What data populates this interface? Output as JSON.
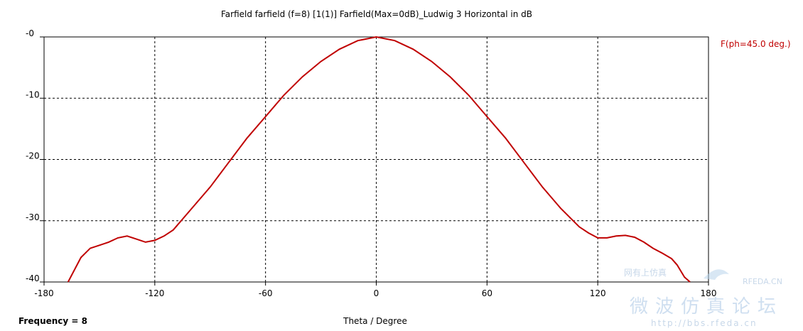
{
  "chart_data": {
    "type": "line",
    "title": "Farfield farfield (f=8) [1(1)] Farfield(Max=0dB)_Ludwig 3 Horizontal in dB",
    "xlabel": "Theta / Degree",
    "ylabel": "",
    "xlim": [
      -180,
      180
    ],
    "ylim": [
      -40,
      0
    ],
    "x_ticks": [
      "-180",
      "-120",
      "-60",
      "0",
      "60",
      "120",
      "180"
    ],
    "y_ticks": [
      "-0",
      "-10",
      "-20",
      "-30",
      "-40"
    ],
    "grid": true,
    "legend_position": "right",
    "series": [
      {
        "name": "F(ph=45.0 deg.)",
        "color": "#c00000",
        "x": [
          -167,
          -160,
          -155,
          -150,
          -145,
          -140,
          -135,
          -130,
          -125,
          -120,
          -115,
          -110,
          -100,
          -90,
          -80,
          -70,
          -60,
          -50,
          -40,
          -30,
          -20,
          -10,
          0,
          10,
          20,
          30,
          40,
          50,
          60,
          70,
          80,
          90,
          100,
          110,
          115,
          120,
          125,
          130,
          135,
          140,
          145,
          150,
          155,
          160,
          163,
          165,
          167,
          170
        ],
        "y": [
          -40,
          -36,
          -34.5,
          -34,
          -33.5,
          -32.8,
          -32.5,
          -33,
          -33.5,
          -33.2,
          -32.5,
          -31.5,
          -28,
          -24.5,
          -20.5,
          -16.5,
          -13,
          -9.5,
          -6.5,
          -4,
          -2,
          -0.6,
          0,
          -0.6,
          -2,
          -4,
          -6.5,
          -9.5,
          -13,
          -16.5,
          -20.5,
          -24.5,
          -28,
          -31,
          -32,
          -32.8,
          -32.8,
          -32.5,
          -32.4,
          -32.7,
          -33.5,
          -34.5,
          -35.3,
          -36.2,
          -37.2,
          -38.2,
          -39.2,
          -40
        ]
      }
    ]
  },
  "footer": {
    "frequency": "Frequency = 8"
  },
  "watermark": {
    "site": "RFEDA.CN",
    "cn_small": "网有上仿真",
    "cn_large": "微波仿真论坛",
    "url": "http://bbs.rfeda.cn"
  }
}
